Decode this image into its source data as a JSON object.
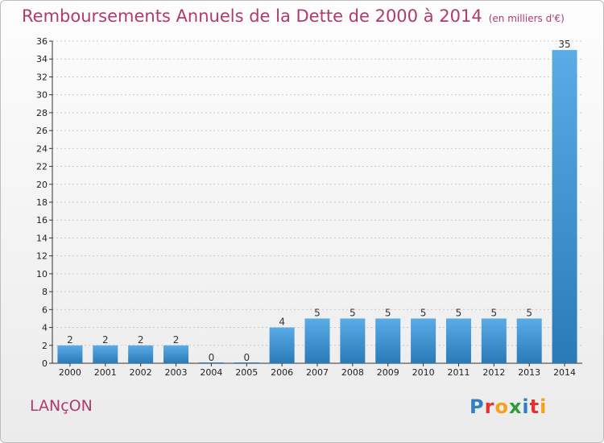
{
  "title": "Remboursements Annuels de la Dette de 2000 à 2014",
  "unit_note": "(en milliers d'€)",
  "commune": "LANçON",
  "logo": {
    "text": "Proxiti",
    "letters": [
      {
        "char": "P",
        "color": "#2e7fc4"
      },
      {
        "char": "r",
        "color": "#e2342f"
      },
      {
        "char": "o",
        "color": "#f4a21a"
      },
      {
        "char": "x",
        "color": "#2e9a3e"
      },
      {
        "char": "i",
        "color": "#2e7fc4"
      },
      {
        "char": "t",
        "color": "#e2342f"
      },
      {
        "char": "i",
        "color": "#f4a21a"
      }
    ]
  },
  "colors": {
    "title": "#b03a6e",
    "bar_top": "#5aabe6",
    "bar_bottom": "#2a7ab8",
    "grid": "#c8c8c8"
  },
  "chart_data": {
    "type": "bar",
    "categories": [
      "2000",
      "2001",
      "2002",
      "2003",
      "2004",
      "2005",
      "2006",
      "2007",
      "2008",
      "2009",
      "2010",
      "2011",
      "2012",
      "2013",
      "2014"
    ],
    "values": [
      2,
      2,
      2,
      2,
      0,
      0,
      4,
      5,
      5,
      5,
      5,
      5,
      5,
      5,
      35
    ],
    "value_labels": [
      "2",
      "2",
      "2",
      "2",
      "0",
      "0",
      "4",
      "5",
      "5",
      "5",
      "5",
      "5",
      "5",
      "5",
      "35"
    ],
    "ylim": [
      0,
      36
    ],
    "yticks": [
      0,
      2,
      4,
      6,
      8,
      10,
      12,
      14,
      16,
      18,
      20,
      22,
      24,
      26,
      28,
      30,
      32,
      34,
      36
    ],
    "grid": true,
    "legend": "none"
  }
}
